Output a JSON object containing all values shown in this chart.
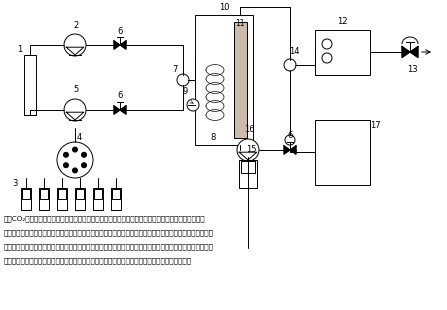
{
  "bg_color": "#ffffff",
  "line_color": "#000000",
  "fig_width": 4.47,
  "fig_height": 3.1,
  "caption_lines": [
    "１：CO₂ボンベ　２：液化二酸化炭素送液ポンプ　３：モディファイアー溶媒　４：溶媒切換バルブ",
    "５：モディファイアー送液ポンプ　６：ストップバルブ　７：ミキシングユニット　８：プレヒートコイル",
    "９：オートサンプラー　１０：カラムオーブン　１１：カラム　１２：光学検出器　１３：自動圧力調整弁",
    "１４：スプリッター　１５：イオン化促進剤　１６：イオン化促進剤送液ポンプ　：質量分析計"
  ],
  "caption_fontsize": 5.2,
  "lw": 0.7
}
